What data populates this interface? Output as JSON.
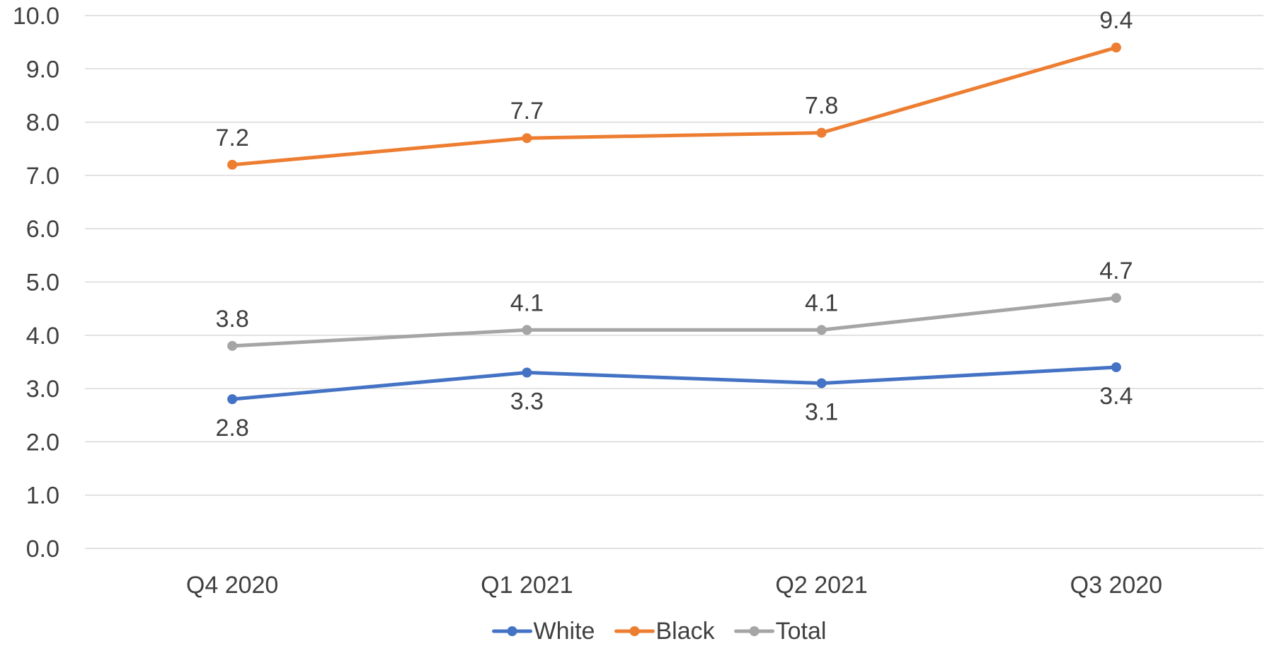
{
  "chart_data": {
    "type": "line",
    "categories": [
      "Q4 2020",
      "Q1 2021",
      "Q2 2021",
      "Q3 2020"
    ],
    "series": [
      {
        "name": "White",
        "color": "#4472C4",
        "values": [
          2.8,
          3.3,
          3.1,
          3.4
        ],
        "labels": [
          "2.8",
          "3.3",
          "3.1",
          "3.4"
        ],
        "label_position": "below"
      },
      {
        "name": "Black",
        "color": "#ED7D31",
        "values": [
          7.2,
          7.7,
          7.8,
          9.4
        ],
        "labels": [
          "7.2",
          "7.7",
          "7.8",
          "9.4"
        ],
        "label_position": "above"
      },
      {
        "name": "Total",
        "color": "#A5A5A5",
        "values": [
          3.8,
          4.1,
          4.1,
          4.7
        ],
        "labels": [
          "3.8",
          "4.1",
          "4.1",
          "4.7"
        ],
        "label_position": "above"
      }
    ],
    "y_ticks": [
      "0.0",
      "1.0",
      "2.0",
      "3.0",
      "4.0",
      "5.0",
      "6.0",
      "7.0",
      "8.0",
      "9.0",
      "10.0"
    ],
    "ylim": [
      0,
      10
    ],
    "grid": true,
    "legend_position": "bottom"
  }
}
